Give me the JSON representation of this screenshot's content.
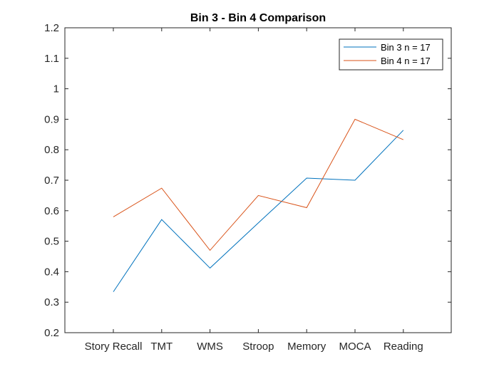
{
  "chart_data": {
    "type": "line",
    "title": "Bin 3 - Bin 4 Comparison",
    "xlabel": "",
    "ylabel": "",
    "categories": [
      "Story Recall",
      "TMT",
      "WMS",
      "Stroop",
      "Memory",
      "MOCA",
      "Reading"
    ],
    "ylim": [
      0.2,
      1.2
    ],
    "yticks": [
      0.2,
      0.3,
      0.4,
      0.5,
      0.6,
      0.7,
      0.8,
      0.9,
      1,
      1.1,
      1.2
    ],
    "ytick_labels": [
      "0.2",
      "0.3",
      "0.4",
      "0.5",
      "0.6",
      "0.7",
      "0.8",
      "0.9",
      "1",
      "1.1",
      "1.2"
    ],
    "grid": false,
    "legend_position": "top-right",
    "series": [
      {
        "name": "Bin 3 n = 17",
        "color": "#0072BD",
        "values": [
          0.334,
          0.571,
          0.412,
          0.56,
          0.707,
          0.7,
          0.864
        ]
      },
      {
        "name": "Bin 4 n = 17",
        "color": "#D95319",
        "values": [
          0.58,
          0.674,
          0.47,
          0.65,
          0.61,
          0.9,
          0.833
        ]
      }
    ]
  }
}
